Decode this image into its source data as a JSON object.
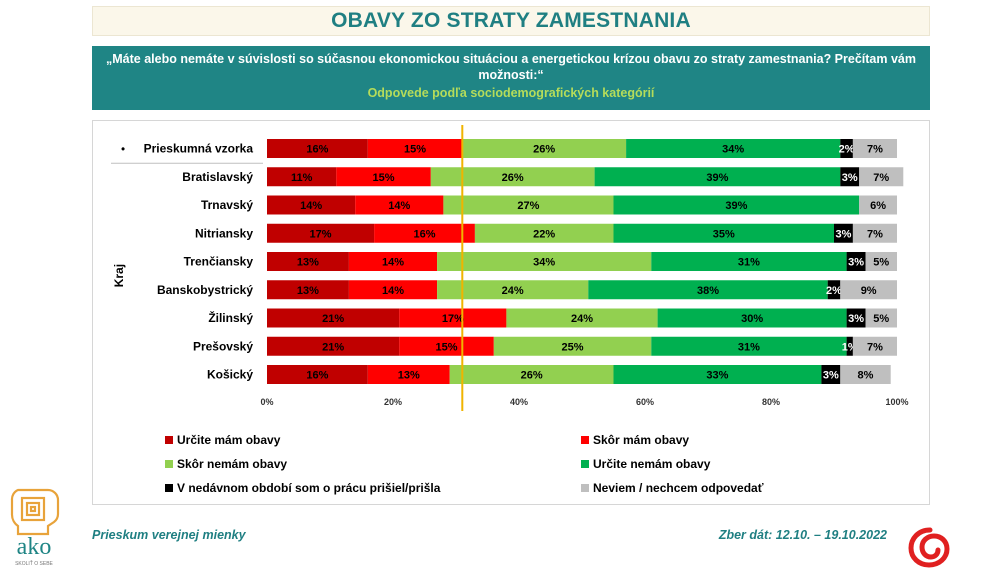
{
  "title": "OBAVY ZO STRATY ZAMESTNANIA",
  "question": "„Máte alebo nemáte v súvislosti so súčasnou ekonomickou situáciou a energetickou krízou obavu zo straty zamestnania? Prečítam vám možnosti:“",
  "subtitle": "Odpovede podľa sociodemografických kategórií",
  "footer": {
    "left": "Prieskum verejnej mienky",
    "right": "Zber dát: 12.10. – 19.10.2022"
  },
  "logos": {
    "ako_text": "ako",
    "ako_tagline": "SKOLIŤ O SEBE"
  },
  "chart_data": {
    "type": "bar",
    "orientation": "horizontal",
    "stacked": true,
    "group_label": "Kraj",
    "categories": [
      "Prieskumná vzorka",
      "Bratislavský",
      "Trnavský",
      "Nitriansky",
      "Trenčiansky",
      "Banskobystrický",
      "Žilinský",
      "Prešovský",
      "Košický"
    ],
    "category_bullets": [
      "•",
      "",
      "",
      "",
      "",
      "",
      "",
      "",
      ""
    ],
    "x_ticks": [
      "0%",
      "20%",
      "40%",
      "60%",
      "80%",
      "100%"
    ],
    "xlim": [
      0,
      100
    ],
    "reference_line": 31,
    "series": [
      {
        "name": "Určite mám obavy",
        "color": "#c00000",
        "values": [
          16,
          11,
          14,
          17,
          13,
          13,
          21,
          21,
          16
        ],
        "labels": [
          "16%",
          "11%",
          "14%",
          "17%",
          "13%",
          "13%",
          "21%",
          "21%",
          "16%"
        ]
      },
      {
        "name": "Skôr mám obavy",
        "color": "#ff0000",
        "values": [
          15,
          15,
          14,
          16,
          14,
          14,
          17,
          15,
          13
        ],
        "labels": [
          "15%",
          "15%",
          "14%",
          "16%",
          "14%",
          "14%",
          "17%",
          "15%",
          "13%"
        ]
      },
      {
        "name": "Skôr nemám obavy",
        "color": "#92d050",
        "values": [
          26,
          26,
          27,
          22,
          34,
          24,
          24,
          25,
          26
        ],
        "labels": [
          "26%",
          "26%",
          "27%",
          "22%",
          "34%",
          "24%",
          "24%",
          "25%",
          "26%"
        ]
      },
      {
        "name": "Určite nemám obavy",
        "color": "#00b050",
        "values": [
          34,
          39,
          39,
          35,
          31,
          38,
          30,
          31,
          33
        ],
        "labels": [
          "34%",
          "39%",
          "39%",
          "35%",
          "31%",
          "38%",
          "30%",
          "31%",
          "33%"
        ]
      },
      {
        "name": "V nedávnom období som o prácu prišiel/prišla",
        "color": "#000000",
        "values": [
          2,
          3,
          0,
          3,
          3,
          2,
          3,
          1,
          3
        ],
        "labels": [
          "2%",
          "3%",
          "",
          "3%",
          "3%",
          "2%",
          "3%",
          "1%",
          "3%"
        ]
      },
      {
        "name": "Neviem / nechcem odpovedať",
        "color": "#bfbfbf",
        "values": [
          7,
          7,
          6,
          7,
          5,
          9,
          5,
          7,
          8
        ],
        "labels": [
          "7%",
          "7%",
          "6%",
          "7%",
          "5%",
          "9%",
          "5%",
          "7%",
          "8%"
        ]
      }
    ],
    "legend_position": "bottom"
  }
}
